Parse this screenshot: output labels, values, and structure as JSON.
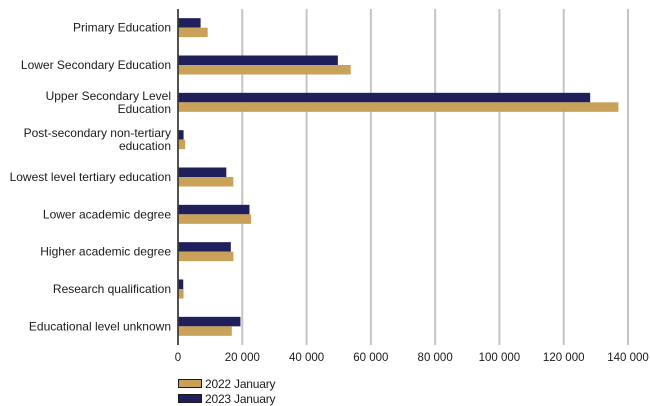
{
  "chart_data": {
    "type": "bar",
    "orientation": "horizontal",
    "categories": [
      "Primary Education",
      "Lower Secondary Education",
      "Upper Secondary Level Education",
      "Post-secondary non-tertiary education",
      "Lowest level tertiary education",
      "Lower academic degree",
      "Higher academic degree",
      "Research qualification",
      "Educational level unknown"
    ],
    "series": [
      {
        "name": "2023 January",
        "color": "#1f1f5c",
        "values": [
          6800,
          49500,
          128000,
          1500,
          14800,
          22000,
          16200,
          1400,
          19200
        ]
      },
      {
        "name": "2022 January",
        "color": "#c9a259",
        "values": [
          9000,
          53500,
          136800,
          2000,
          17000,
          22500,
          17000,
          1500,
          16500
        ]
      }
    ],
    "xlim": [
      0,
      140000
    ],
    "xticks": [
      "0",
      "20 000",
      "40 000",
      "60 000",
      "80 000",
      "100 000",
      "120 000",
      "140 000"
    ],
    "grid": true,
    "legend_position": "bottom-left",
    "legend": [
      "2022 January",
      "2023 January"
    ]
  }
}
